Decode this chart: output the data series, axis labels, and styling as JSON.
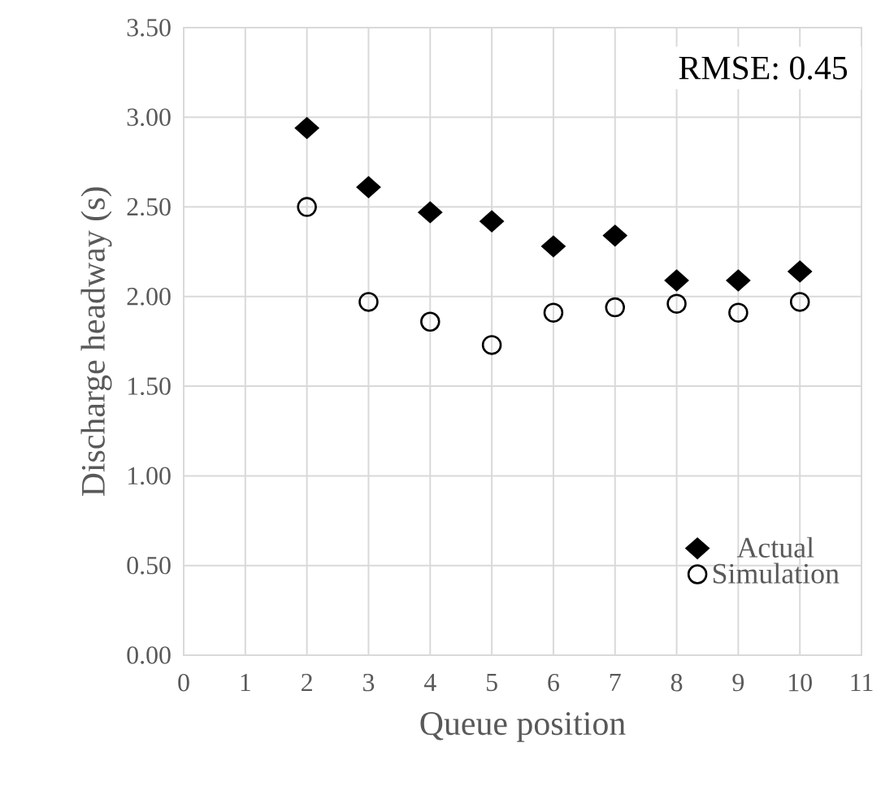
{
  "chart_data": {
    "type": "scatter",
    "xlabel": "Queue position",
    "ylabel": "Discharge  headway (s)",
    "x": [
      2,
      3,
      4,
      5,
      6,
      7,
      8,
      9,
      10
    ],
    "series": [
      {
        "name": "Actual",
        "color": "#000000",
        "marker": "diamond",
        "values": [
          2.94,
          2.61,
          2.47,
          2.42,
          2.28,
          2.34,
          2.09,
          2.09,
          2.14
        ]
      },
      {
        "name": "Simulation",
        "color": "#000000",
        "marker": "circle",
        "values": [
          2.5,
          1.97,
          1.86,
          1.73,
          1.91,
          1.94,
          1.96,
          1.91,
          1.97
        ]
      }
    ],
    "xlim": [
      0,
      11
    ],
    "ylim": [
      0,
      3.5
    ],
    "xticks": [
      0,
      1,
      2,
      3,
      4,
      5,
      6,
      7,
      8,
      9,
      10,
      11
    ],
    "yticks": [
      {
        "value": 0,
        "label": "0.00"
      },
      {
        "value": 0.5,
        "label": "0.50"
      },
      {
        "value": 1,
        "label": "1.00"
      },
      {
        "value": 1.5,
        "label": "1.50"
      },
      {
        "value": 2,
        "label": "2.00"
      },
      {
        "value": 2.5,
        "label": "2.50"
      },
      {
        "value": 3,
        "label": "3.00"
      },
      {
        "value": 3.5,
        "label": "3.50"
      }
    ],
    "grid": true,
    "legend": "bottom right",
    "annotations": [
      "RMSE: 0.45"
    ]
  }
}
